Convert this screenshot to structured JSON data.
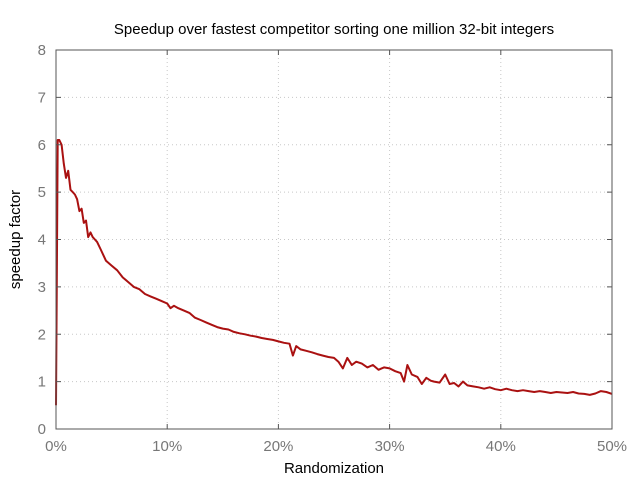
{
  "chart_data": {
    "type": "line",
    "title": "Speedup over fastest competitor sorting one million 32-bit integers",
    "xlabel": "Randomization",
    "ylabel": "speedup factor",
    "xlim": [
      0,
      50
    ],
    "ylim": [
      0,
      8
    ],
    "x_ticks": [
      "0%",
      "10%",
      "20%",
      "30%",
      "40%",
      "50%"
    ],
    "y_ticks": [
      "0",
      "1",
      "2",
      "3",
      "4",
      "5",
      "6",
      "7",
      "8"
    ],
    "grid": true,
    "line_color": "#aa1111",
    "series": [
      {
        "x": [
          0,
          0.15,
          0.3,
          0.5,
          0.7,
          0.9,
          1.1,
          1.3,
          1.5,
          1.7,
          1.9,
          2.1,
          2.3,
          2.5,
          2.7,
          2.9,
          3.1,
          3.3,
          3.5,
          3.7,
          4.0,
          4.5,
          5.0,
          5.5,
          6.0,
          6.5,
          7.0,
          7.5,
          8.0,
          8.5,
          9.0,
          9.5,
          10.0,
          10.3,
          10.6,
          11.0,
          11.5,
          12.0,
          12.5,
          13.0,
          13.5,
          14.0,
          14.5,
          15.0,
          15.5,
          16.0,
          16.5,
          17.0,
          17.5,
          18.0,
          18.5,
          19.0,
          19.5,
          20.0,
          20.5,
          21.0,
          21.3,
          21.6,
          22.0,
          22.5,
          23.0,
          23.5,
          24.0,
          24.5,
          25.0,
          25.4,
          25.8,
          26.2,
          26.6,
          27.0,
          27.5,
          28.0,
          28.5,
          29.0,
          29.5,
          30.0,
          30.5,
          31.0,
          31.3,
          31.6,
          32.0,
          32.5,
          32.9,
          33.3,
          33.7,
          34.0,
          34.5,
          35.0,
          35.4,
          35.8,
          36.2,
          36.6,
          37.0,
          37.5,
          38.0,
          38.5,
          39.0,
          39.5,
          40.0,
          40.5,
          41.0,
          41.5,
          42.0,
          42.5,
          43.0,
          43.5,
          44.0,
          44.5,
          45.0,
          45.5,
          46.0,
          46.5,
          47.0,
          47.5,
          48.0,
          48.5,
          49.0,
          49.5,
          50.0
        ],
        "values": [
          0.5,
          6.1,
          6.1,
          6.0,
          5.6,
          5.3,
          5.45,
          5.05,
          5.0,
          4.95,
          4.85,
          4.6,
          4.65,
          4.35,
          4.4,
          4.05,
          4.15,
          4.05,
          4.0,
          3.95,
          3.8,
          3.55,
          3.45,
          3.35,
          3.2,
          3.1,
          3.0,
          2.95,
          2.85,
          2.8,
          2.75,
          2.7,
          2.65,
          2.55,
          2.6,
          2.55,
          2.5,
          2.45,
          2.35,
          2.3,
          2.25,
          2.2,
          2.15,
          2.12,
          2.1,
          2.05,
          2.02,
          2.0,
          1.97,
          1.95,
          1.92,
          1.9,
          1.88,
          1.85,
          1.82,
          1.8,
          1.55,
          1.75,
          1.68,
          1.65,
          1.62,
          1.58,
          1.55,
          1.52,
          1.5,
          1.42,
          1.28,
          1.5,
          1.35,
          1.42,
          1.38,
          1.3,
          1.35,
          1.25,
          1.3,
          1.28,
          1.22,
          1.18,
          1.0,
          1.35,
          1.15,
          1.1,
          0.95,
          1.08,
          1.02,
          1.0,
          0.98,
          1.15,
          0.95,
          0.97,
          0.9,
          1.0,
          0.92,
          0.9,
          0.88,
          0.85,
          0.88,
          0.84,
          0.82,
          0.85,
          0.82,
          0.8,
          0.82,
          0.8,
          0.78,
          0.8,
          0.78,
          0.76,
          0.78,
          0.77,
          0.76,
          0.78,
          0.75,
          0.74,
          0.72,
          0.75,
          0.8,
          0.78,
          0.74
        ]
      }
    ]
  }
}
